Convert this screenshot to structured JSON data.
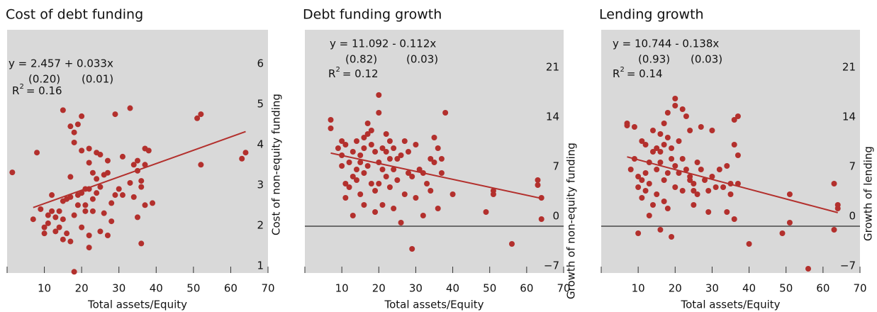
{
  "chart_data": [
    {
      "type": "scatter",
      "title": "Cost of debt funding",
      "x_label": "Total assets/Equity",
      "y_label": "Cost of non-equity funding",
      "equation": "y = 2.457 + 0.033x",
      "se_intercept": "(0.20)",
      "se_slope": "(0.01)",
      "r_symbol": "R",
      "r_power": "2",
      "r_value": "= 0.16",
      "color": "#b3302d",
      "xlim": [
        0,
        70
      ],
      "ylim": [
        1.07,
        7.09
      ],
      "xticks": [
        10,
        20,
        30,
        40,
        50,
        60,
        70
      ],
      "yticks": [
        1,
        2,
        3,
        4,
        5,
        6
      ],
      "zero_line": false,
      "x": [
        1.4,
        8,
        7,
        9,
        10,
        10,
        11,
        11,
        12,
        12,
        13,
        13,
        14,
        14,
        15,
        15,
        15,
        15,
        16,
        16,
        17,
        17,
        17,
        17,
        18,
        18,
        18,
        18,
        19,
        19,
        19,
        20,
        20,
        20,
        20,
        21,
        21,
        21,
        22,
        22,
        22,
        22,
        22,
        23,
        23,
        23,
        24,
        24,
        24,
        25,
        25,
        25,
        26,
        26,
        27,
        27,
        27,
        28,
        28,
        29,
        29,
        30,
        31,
        31,
        33,
        33,
        34,
        34,
        35,
        35,
        35,
        36,
        36,
        36,
        37,
        37,
        37,
        38,
        39,
        51,
        52,
        52,
        63,
        64
      ],
      "values": [
        3.56,
        4.05,
        2.4,
        2.65,
        2.2,
        2.05,
        2.5,
        2.3,
        2.6,
        3.0,
        2.1,
        2.45,
        2.6,
        2.2,
        2.85,
        2.4,
        5.1,
        1.9,
        2.9,
        2.05,
        2.95,
        1.85,
        4.7,
        3.45,
        4.55,
        4.3,
        2.5,
        1.1,
        3.0,
        2.75,
        4.75,
        4.95,
        4.1,
        3.05,
        2.2,
        3.15,
        2.75,
        2.6,
        4.15,
        3.8,
        3.15,
        2.0,
        1.7,
        3.55,
        2.9,
        2.6,
        3.4,
        4.05,
        3.05,
        4.0,
        2.1,
        3.2,
        3.5,
        2.55,
        3.55,
        2.0,
        3.85,
        2.35,
        2.8,
        5.0,
        3.0,
        3.15,
        3.95,
        3.0,
        3.3,
        5.15,
        3.75,
        2.95,
        3.85,
        2.45,
        3.6,
        3.2,
        3.35,
        1.8,
        4.15,
        2.75,
        3.75,
        4.1,
        2.8,
        4.9,
        5.0,
        3.75,
        3.9,
        4.05
      ],
      "fit": {
        "x": [
          7,
          64
        ],
        "values": [
          2.69,
          4.57
        ]
      }
    },
    {
      "type": "scatter",
      "title": "Debt funding growth",
      "x_label": "Total assets/Equity",
      "y_label": "Growth of non-equity funding",
      "equation": "y = 11.092 - 0.112x",
      "se_intercept": "(0.82)",
      "se_slope": "(0.03)",
      "r_symbol": "R",
      "r_power": "2",
      "r_value": "= 0.12",
      "color": "#b3302d",
      "xlim": [
        0,
        70
      ],
      "ylim": [
        -6.6,
        27.7
      ],
      "xticks": [
        10,
        20,
        30,
        40,
        50,
        60,
        70
      ],
      "yticks": [
        {
          "value": -7,
          "label": "−7"
        },
        0,
        7,
        14,
        21
      ],
      "zero_line": true,
      "x": [
        7,
        7,
        9,
        10,
        10,
        10,
        11,
        11,
        11,
        12,
        12,
        13,
        13,
        13,
        14,
        14,
        14,
        15,
        15,
        15,
        16,
        16,
        16,
        16,
        17,
        17,
        17,
        18,
        18,
        18,
        19,
        19,
        19,
        20,
        20,
        20,
        20,
        21,
        21,
        21,
        22,
        22,
        22,
        23,
        23,
        23,
        24,
        24,
        24,
        25,
        25,
        26,
        26,
        27,
        27,
        28,
        28,
        29,
        29,
        30,
        30,
        31,
        32,
        32,
        33,
        34,
        34,
        35,
        35,
        36,
        36,
        37,
        37,
        38,
        40,
        49,
        51,
        51,
        56,
        63,
        63,
        64,
        64
      ],
      "values": [
        15.0,
        13.8,
        11.0,
        12.0,
        10.0,
        8.5,
        6.0,
        4.0,
        11.5,
        9.0,
        5.5,
        10.5,
        7.0,
        1.5,
        12.0,
        8.0,
        6.5,
        10.0,
        9.0,
        4.5,
        12.5,
        11.0,
        7.5,
        3.0,
        14.5,
        13.0,
        8.5,
        13.5,
        11.5,
        6.0,
        10.5,
        5.0,
        2.0,
        18.5,
        16.0,
        9.0,
        6.0,
        11.0,
        8.0,
        3.0,
        13.0,
        10.5,
        7.0,
        12.0,
        9.5,
        5.5,
        11.0,
        8.0,
        2.5,
        9.5,
        6.5,
        10.0,
        0.5,
        12.0,
        4.5,
        10.5,
        7.5,
        7.0,
        -3.2,
        11.5,
        4.0,
        8.0,
        1.5,
        7.5,
        6.0,
        9.5,
        5.0,
        9.0,
        12.5,
        11.0,
        2.5,
        9.5,
        7.5,
        16.0,
        4.5,
        2.0,
        5.0,
        4.5,
        -2.5,
        6.5,
        5.8,
        4.0,
        1.0
      ],
      "fit": {
        "x": [
          7,
          64
        ],
        "values": [
          10.31,
          3.92
        ]
      }
    },
    {
      "type": "scatter",
      "title": "Lending growth",
      "x_label": "Total assets/Equity",
      "y_label": "Growth of lending",
      "equation": "y = 10.744 - 0.138x",
      "se_intercept": "(0.93)",
      "se_slope": "(0.03)",
      "r_symbol": "R",
      "r_power": "2",
      "r_value": "= 0.14",
      "color": "#b3302d",
      "xlim": [
        0,
        70
      ],
      "ylim": [
        -6.6,
        27.7
      ],
      "xticks": [
        10,
        20,
        30,
        40,
        50,
        60,
        70
      ],
      "yticks": [
        {
          "value": -7,
          "label": "−7"
        },
        0,
        7,
        14,
        21
      ],
      "zero_line": true,
      "x": [
        7,
        7,
        8,
        9,
        9,
        10,
        10,
        10,
        11,
        11,
        11,
        12,
        12,
        12,
        13,
        13,
        13,
        14,
        14,
        14,
        15,
        15,
        15,
        16,
        16,
        16,
        16,
        17,
        17,
        17,
        17,
        18,
        18,
        18,
        18,
        19,
        19,
        19,
        20,
        20,
        20,
        20,
        21,
        21,
        22,
        22,
        22,
        23,
        23,
        24,
        24,
        24,
        25,
        25,
        25,
        26,
        26,
        27,
        27,
        28,
        29,
        29,
        30,
        30,
        31,
        32,
        33,
        34,
        34,
        35,
        35,
        36,
        36,
        36,
        37,
        37,
        37,
        40,
        49,
        51,
        51,
        56,
        63,
        63,
        64,
        64
      ],
      "values": [
        14.5,
        14.2,
        8.0,
        9.5,
        14.0,
        7.0,
        5.5,
        -1.0,
        6.5,
        12.0,
        4.0,
        11.5,
        7.5,
        5.0,
        9.0,
        6.0,
        1.5,
        13.5,
        10.5,
        3.0,
        11.0,
        8.0,
        4.5,
        13.0,
        10.5,
        9.0,
        -0.5,
        14.5,
        11.5,
        6.5,
        3.5,
        16.0,
        12.5,
        7.5,
        2.5,
        11.0,
        9.5,
        -1.5,
        18.0,
        17.0,
        8.5,
        5.5,
        12.0,
        7.5,
        16.5,
        9.5,
        5.0,
        15.5,
        8.0,
        13.5,
        7.0,
        6.5,
        6.0,
        5.0,
        3.0,
        9.0,
        4.5,
        14.0,
        8.0,
        6.5,
        5.0,
        2.0,
        13.5,
        7.0,
        5.5,
        8.0,
        5.5,
        8.5,
        2.0,
        4.5,
        6.0,
        15.0,
        11.5,
        1.0,
        15.5,
        10.0,
        6.0,
        -2.5,
        -1.0,
        4.5,
        0.5,
        -6.0,
        6.0,
        -0.5,
        3.0,
        2.5
      ],
      "fit": {
        "x": [
          7,
          64
        ],
        "values": [
          9.78,
          1.91
        ]
      }
    }
  ]
}
